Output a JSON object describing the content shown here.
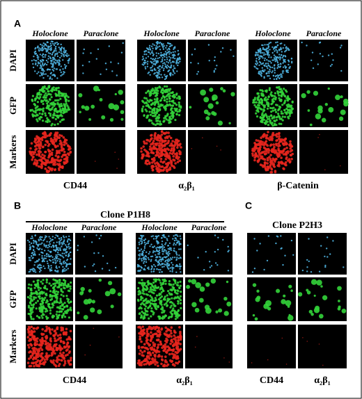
{
  "panel_a": {
    "label": "A",
    "column_headers": [
      "Holoclone",
      "Paraclone"
    ],
    "row_labels": [
      "DAPI",
      "GFP",
      "Markers"
    ],
    "markers": [
      "CD44",
      "α₂β₁",
      "β-Catenin"
    ]
  },
  "panel_b": {
    "label": "B",
    "title": "Clone P1H8",
    "column_headers": [
      "Holoclone",
      "Paraclone"
    ],
    "row_labels": [
      "DAPI",
      "GFP",
      "Markers"
    ],
    "markers": [
      "CD44",
      "α₂β₁"
    ]
  },
  "panel_c": {
    "label": "C",
    "title": "Clone P2H3",
    "markers": [
      "CD44",
      "α₂β₁"
    ]
  }
}
